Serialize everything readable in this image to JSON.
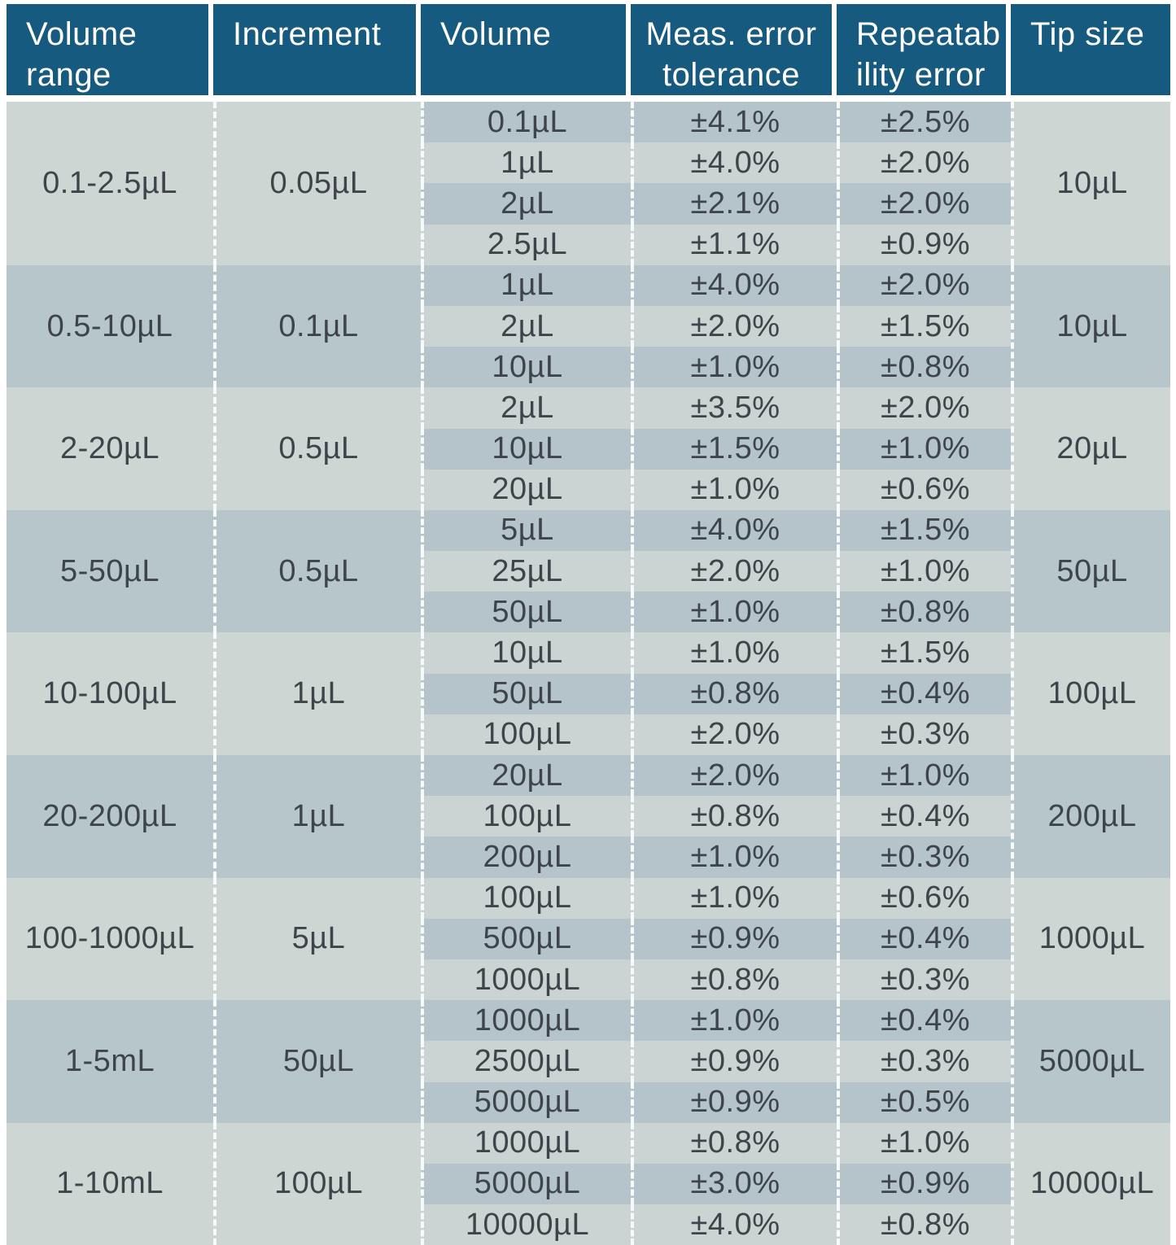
{
  "table": {
    "headers": [
      {
        "line1": "Volume",
        "line2": "range"
      },
      {
        "line1": "Increment",
        "line2": ""
      },
      {
        "line1": "Volume",
        "line2": ""
      },
      {
        "line1": "Meas. error",
        "line2": "tolerance"
      },
      {
        "line1": "Repeatab",
        "line2": "ility error"
      },
      {
        "line1": "Tip size",
        "line2": ""
      }
    ],
    "groups": [
      {
        "volume_range": "0.1-2.5µL",
        "increment": "0.05µL",
        "tip_size": "10µL",
        "rows": [
          {
            "volume": "0.1µL",
            "meas_error": "±4.1%",
            "repeatability": "±2.5%"
          },
          {
            "volume": "1µL",
            "meas_error": "±4.0%",
            "repeatability": "±2.0%"
          },
          {
            "volume": "2µL",
            "meas_error": "±2.1%",
            "repeatability": "±2.0%"
          },
          {
            "volume": "2.5µL",
            "meas_error": "±1.1%",
            "repeatability": "±0.9%"
          }
        ]
      },
      {
        "volume_range": "0.5-10µL",
        "increment": "0.1µL",
        "tip_size": "10µL",
        "rows": [
          {
            "volume": "1µL",
            "meas_error": "±4.0%",
            "repeatability": "±2.0%"
          },
          {
            "volume": "2µL",
            "meas_error": "±2.0%",
            "repeatability": "±1.5%"
          },
          {
            "volume": "10µL",
            "meas_error": "±1.0%",
            "repeatability": "±0.8%"
          }
        ]
      },
      {
        "volume_range": "2-20µL",
        "increment": "0.5µL",
        "tip_size": "20µL",
        "rows": [
          {
            "volume": "2µL",
            "meas_error": "±3.5%",
            "repeatability": "±2.0%"
          },
          {
            "volume": "10µL",
            "meas_error": "±1.5%",
            "repeatability": "±1.0%"
          },
          {
            "volume": "20µL",
            "meas_error": "±1.0%",
            "repeatability": "±0.6%"
          }
        ]
      },
      {
        "volume_range": "5-50µL",
        "increment": "0.5µL",
        "tip_size": "50µL",
        "rows": [
          {
            "volume": "5µL",
            "meas_error": "±4.0%",
            "repeatability": "±1.5%"
          },
          {
            "volume": "25µL",
            "meas_error": "±2.0%",
            "repeatability": "±1.0%"
          },
          {
            "volume": "50µL",
            "meas_error": "±1.0%",
            "repeatability": "±0.8%"
          }
        ]
      },
      {
        "volume_range": "10-100µL",
        "increment": "1µL",
        "tip_size": "100µL",
        "rows": [
          {
            "volume": "10µL",
            "meas_error": "±1.0%",
            "repeatability": "±1.5%"
          },
          {
            "volume": "50µL",
            "meas_error": "±0.8%",
            "repeatability": "±0.4%"
          },
          {
            "volume": "100µL",
            "meas_error": "±2.0%",
            "repeatability": "±0.3%"
          }
        ]
      },
      {
        "volume_range": "20-200µL",
        "increment": "1µL",
        "tip_size": "200µL",
        "rows": [
          {
            "volume": "20µL",
            "meas_error": "±2.0%",
            "repeatability": "±1.0%"
          },
          {
            "volume": "100µL",
            "meas_error": "±0.8%",
            "repeatability": "±0.4%"
          },
          {
            "volume": "200µL",
            "meas_error": "±1.0%",
            "repeatability": "±0.3%"
          }
        ]
      },
      {
        "volume_range": "100-1000µL",
        "increment": "5µL",
        "tip_size": "1000µL",
        "rows": [
          {
            "volume": "100µL",
            "meas_error": "±1.0%",
            "repeatability": "±0.6%"
          },
          {
            "volume": "500µL",
            "meas_error": "±0.9%",
            "repeatability": "±0.4%"
          },
          {
            "volume": "1000µL",
            "meas_error": "±0.8%",
            "repeatability": "±0.3%"
          }
        ]
      },
      {
        "volume_range": "1-5mL",
        "increment": "50µL",
        "tip_size": "5000µL",
        "rows": [
          {
            "volume": "1000µL",
            "meas_error": "±1.0%",
            "repeatability": "±0.4%"
          },
          {
            "volume": "2500µL",
            "meas_error": "±0.9%",
            "repeatability": "±0.3%"
          },
          {
            "volume": "5000µL",
            "meas_error": "±0.9%",
            "repeatability": "±0.5%"
          }
        ]
      },
      {
        "volume_range": "1-10mL",
        "increment": "100µL",
        "tip_size": "10000µL",
        "rows": [
          {
            "volume": "1000µL",
            "meas_error": "±0.8%",
            "repeatability": "±1.0%"
          },
          {
            "volume": "5000µL",
            "meas_error": "±3.0%",
            "repeatability": "±0.9%"
          },
          {
            "volume": "10000µL",
            "meas_error": "±4.0%",
            "repeatability": "±0.8%"
          }
        ]
      }
    ]
  },
  "colors": {
    "header_bg": "#175a80",
    "header_text": "#ffffff",
    "row_dark": "#b5c4ca",
    "row_light": "#cbd4d3",
    "group_dark": "#b7c6cb",
    "group_light": "#ced6d4",
    "body_text": "#3e454a",
    "separator": "#ffffff"
  }
}
